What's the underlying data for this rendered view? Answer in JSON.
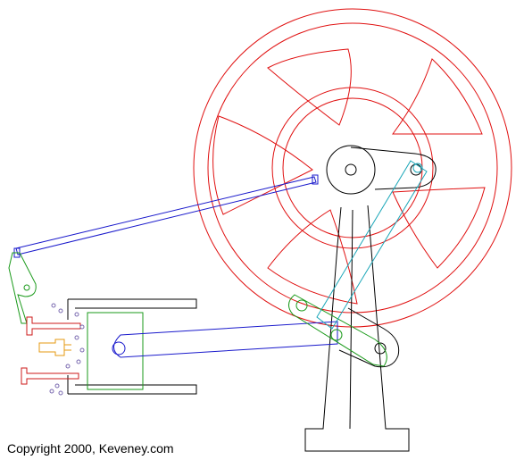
{
  "copyright": "Copyright 2000, Keveney.com",
  "colors": {
    "flywheel": "#e01010",
    "frame": "#000000",
    "connecting_rod": "#1a1acc",
    "lever": "#1a9a1a",
    "link": "#1aa6b8",
    "valve": "#cc1a1a",
    "spark_plug": "#e69a10",
    "piston": "#1a9a1a",
    "particles": "#7a6ab0"
  }
}
